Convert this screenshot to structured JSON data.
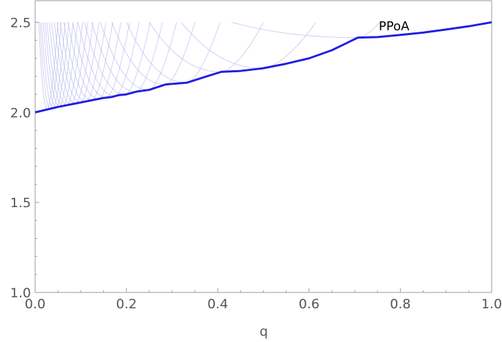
{
  "chart_data": {
    "type": "line",
    "xlabel": "q",
    "ylabel": "",
    "xlim": [
      0,
      1
    ],
    "ylim": [
      1.0,
      2.62
    ],
    "grid": false,
    "x_ticks": [
      "0.0",
      "0.2",
      "0.4",
      "0.6",
      "0.8",
      "1.0"
    ],
    "x_tick_values": [
      0,
      0.2,
      0.4,
      0.6,
      0.8,
      1.0
    ],
    "y_ticks": [
      "1.0",
      "1.5",
      "2.0",
      "2.5"
    ],
    "y_tick_values": [
      1.0,
      1.5,
      2.0,
      2.5
    ],
    "annotation": {
      "text": "PPoA",
      "x": 0.8,
      "y": 2.5
    },
    "series": [
      {
        "name": "PPoA",
        "color": "#1f1fe0",
        "points": [
          [
            0.0,
            2.0
          ],
          [
            0.05,
            2.03
          ],
          [
            0.1,
            2.055
          ],
          [
            0.15,
            2.08
          ],
          [
            0.167,
            2.085
          ],
          [
            0.182,
            2.095
          ],
          [
            0.2,
            2.1
          ],
          [
            0.222,
            2.115
          ],
          [
            0.25,
            2.125
          ],
          [
            0.286,
            2.155
          ],
          [
            0.333,
            2.165
          ],
          [
            0.37,
            2.195
          ],
          [
            0.408,
            2.225
          ],
          [
            0.45,
            2.23
          ],
          [
            0.5,
            2.245
          ],
          [
            0.55,
            2.27
          ],
          [
            0.6,
            2.3
          ],
          [
            0.65,
            2.345
          ],
          [
            0.707,
            2.415
          ],
          [
            0.75,
            2.418
          ],
          [
            0.8,
            2.43
          ],
          [
            0.85,
            2.443
          ],
          [
            0.9,
            2.46
          ],
          [
            0.95,
            2.478
          ],
          [
            1.0,
            2.5
          ]
        ]
      }
    ],
    "background_curves": {
      "color": "#b0b0ec",
      "description": "family of U-shaped curves clipped at 2.5",
      "minima_x": [
        0.027,
        0.033,
        0.04,
        0.047,
        0.054,
        0.062,
        0.07,
        0.079,
        0.089,
        0.1,
        0.112,
        0.125,
        0.14,
        0.157,
        0.176,
        0.198,
        0.222,
        0.25,
        0.286,
        0.333,
        0.408,
        0.5,
        0.707
      ],
      "left_cross_x": [
        0.008,
        0.011,
        0.014,
        0.018,
        0.022,
        0.026,
        0.031,
        0.036,
        0.042,
        0.048,
        0.055,
        0.063,
        0.072,
        0.082,
        0.094,
        0.108,
        0.124,
        0.143,
        0.168,
        0.2,
        0.25,
        0.32,
        0.43
      ],
      "right_cross_x": [
        0.05,
        0.057,
        0.066,
        0.074,
        0.083,
        0.093,
        0.104,
        0.115,
        0.127,
        0.14,
        0.155,
        0.17,
        0.188,
        0.207,
        0.228,
        0.252,
        0.279,
        0.31,
        0.35,
        0.405,
        0.5,
        0.615,
        0.755
      ]
    }
  }
}
